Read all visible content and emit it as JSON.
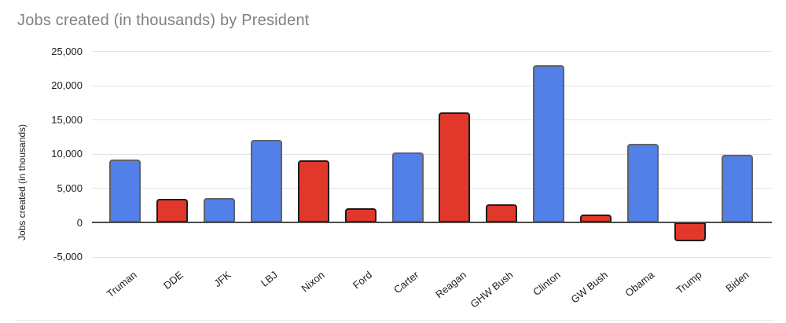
{
  "page": {
    "background": "#ffffff"
  },
  "chart_data": {
    "type": "bar",
    "title": "Jobs created (in thousands) by President",
    "xlabel": "",
    "ylabel": "Jobs created (in thousands)",
    "categories": [
      "Truman",
      "DDE",
      "JFK",
      "LBJ",
      "Nixon",
      "Ford",
      "Carter",
      "Reagan",
      "GHW Bush",
      "Clinton",
      "GW Bush",
      "Obama",
      "Trump",
      "Biden"
    ],
    "values": [
      9200,
      3500,
      3600,
      12100,
      9100,
      2100,
      10200,
      16100,
      2600,
      22900,
      1200,
      11500,
      -2700,
      9900
    ],
    "parties": [
      "D",
      "R",
      "D",
      "D",
      "R",
      "R",
      "D",
      "R",
      "R",
      "D",
      "R",
      "D",
      "R",
      "D"
    ],
    "party_colors": {
      "D": "#527FE8",
      "R": "#E2372B"
    },
    "party_border_colors": {
      "D": "#5F6368",
      "R": "#1C1C1C"
    },
    "ylim": [
      -5000,
      25000
    ],
    "ytick_step": 5000,
    "yticks": [
      {
        "label": "25,000",
        "value": 25000
      },
      {
        "label": "20,000",
        "value": 20000
      },
      {
        "label": "15,000",
        "value": 15000
      },
      {
        "label": "10,000",
        "value": 10000
      },
      {
        "label": "5,000",
        "value": 5000
      },
      {
        "label": "0",
        "value": 0
      },
      {
        "label": "-5,000",
        "value": -5000
      }
    ],
    "grid": "horizontal",
    "legend": "none",
    "title_color": "#808080",
    "axis_text_color": "#1f1f1f",
    "gridline_color": "#e3e3e3",
    "zero_line_color": "#4a4a4a"
  }
}
